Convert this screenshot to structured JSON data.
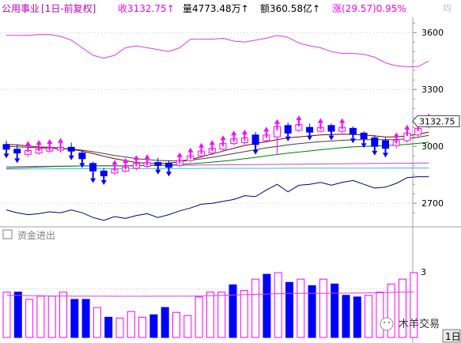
{
  "header": {
    "sector": "公用事业",
    "period": "[1日-前复权]",
    "close": "收3132.75↑",
    "volume": "量4773.48万↑",
    "amount": "额360.58亿↑",
    "change": "涨(29.57)0.95%",
    "tail": "均"
  },
  "price_axis": {
    "ticks": [
      "3600",
      "3300",
      "3000",
      "2700"
    ],
    "current": "3132.75"
  },
  "subpanel": {
    "title": "资金进出",
    "tick": "3",
    "period_button": "1日"
  },
  "watermark": "木羊交易",
  "colors": {
    "up": "#ff00ff",
    "down": "#0000ff",
    "upper_line": "#e03ce0",
    "lower_line": "#000080",
    "ma_long": "#d040d0",
    "ma_cyan": "#30c0d0",
    "ma_green": "#008000",
    "ma_dark": "#800000",
    "ma_gray": "#404040"
  },
  "chart_data": [
    {
      "type": "candlestick",
      "ylim": [
        2580,
        3680
      ],
      "yticks": [
        2700,
        3000,
        3300,
        3600
      ],
      "candles": [
        {
          "o": 3010,
          "c": 2985,
          "h": 3030,
          "l": 2970
        },
        {
          "o": 2985,
          "c": 2965,
          "h": 3010,
          "l": 2945
        },
        {
          "o": 2958,
          "c": 2978,
          "h": 2995,
          "l": 2945
        },
        {
          "o": 2965,
          "c": 2985,
          "h": 3000,
          "l": 2955
        },
        {
          "o": 2975,
          "c": 2992,
          "h": 3005,
          "l": 2965
        },
        {
          "o": 2980,
          "c": 2995,
          "h": 3010,
          "l": 2968
        },
        {
          "o": 2995,
          "c": 2975,
          "h": 3020,
          "l": 2960
        },
        {
          "o": 2965,
          "c": 2935,
          "h": 2980,
          "l": 2920
        },
        {
          "o": 2910,
          "c": 2870,
          "h": 2920,
          "l": 2840
        },
        {
          "o": 2870,
          "c": 2845,
          "h": 2885,
          "l": 2830
        },
        {
          "o": 2860,
          "c": 2880,
          "h": 2895,
          "l": 2850
        },
        {
          "o": 2870,
          "c": 2890,
          "h": 2905,
          "l": 2862
        },
        {
          "o": 2885,
          "c": 2910,
          "h": 2920,
          "l": 2875
        },
        {
          "o": 2895,
          "c": 2915,
          "h": 2925,
          "l": 2885
        },
        {
          "o": 2915,
          "c": 2900,
          "h": 2940,
          "l": 2885
        },
        {
          "o": 2910,
          "c": 2890,
          "h": 2925,
          "l": 2875
        },
        {
          "o": 2900,
          "c": 2925,
          "h": 2935,
          "l": 2890
        },
        {
          "o": 2925,
          "c": 2950,
          "h": 2960,
          "l": 2915
        },
        {
          "o": 2950,
          "c": 2975,
          "h": 2985,
          "l": 2940
        },
        {
          "o": 2965,
          "c": 2990,
          "h": 3000,
          "l": 2955
        },
        {
          "o": 2985,
          "c": 3015,
          "h": 3025,
          "l": 2975
        },
        {
          "o": 3015,
          "c": 3040,
          "h": 3050,
          "l": 3005
        },
        {
          "o": 3020,
          "c": 3045,
          "h": 3055,
          "l": 3010
        },
        {
          "o": 3060,
          "c": 3010,
          "h": 3075,
          "l": 2990
        },
        {
          "o": 3030,
          "c": 3060,
          "h": 3070,
          "l": 3020
        },
        {
          "o": 3050,
          "c": 3105,
          "h": 3110,
          "l": 2960
        },
        {
          "o": 3110,
          "c": 3070,
          "h": 3125,
          "l": 3060
        },
        {
          "o": 3085,
          "c": 3115,
          "h": 3130,
          "l": 3075
        },
        {
          "o": 3100,
          "c": 3075,
          "h": 3120,
          "l": 3065
        },
        {
          "o": 3080,
          "c": 3100,
          "h": 3115,
          "l": 3075
        },
        {
          "o": 3110,
          "c": 3080,
          "h": 3120,
          "l": 3065
        },
        {
          "o": 3080,
          "c": 3100,
          "h": 3115,
          "l": 3070
        },
        {
          "o": 3095,
          "c": 3065,
          "h": 3105,
          "l": 3050
        },
        {
          "o": 3070,
          "c": 3040,
          "h": 3080,
          "l": 3025
        },
        {
          "o": 3045,
          "c": 3000,
          "h": 3060,
          "l": 2985
        },
        {
          "o": 3030,
          "c": 2990,
          "h": 3045,
          "l": 2975
        },
        {
          "o": 3005,
          "c": 3030,
          "h": 3040,
          "l": 2990
        },
        {
          "o": 3030,
          "c": 3070,
          "h": 3080,
          "l": 3020
        },
        {
          "o": 3060,
          "c": 3095,
          "h": 3105,
          "l": 3050
        },
        {
          "o": 3103,
          "c": 3133,
          "h": 3140,
          "l": 3095
        }
      ],
      "ma_dark": [
        3010,
        3008,
        3002,
        2997,
        2995,
        2990,
        2985,
        2975,
        2962,
        2948,
        2935,
        2925,
        2915,
        2910,
        2910,
        2912,
        2918,
        2930,
        2945,
        2960,
        2975,
        2990,
        3005,
        3015,
        3025,
        3035,
        3045,
        3050,
        3055,
        3060,
        3062,
        3064,
        3063,
        3060,
        3055,
        3050,
        3050,
        3055,
        3065,
        3075
      ],
      "ma_gray": [
        3000,
        2998,
        2995,
        2992,
        2990,
        2988,
        2985,
        2980,
        2972,
        2962,
        2952,
        2944,
        2936,
        2930,
        2926,
        2924,
        2925,
        2928,
        2934,
        2942,
        2952,
        2962,
        2972,
        2982,
        2992,
        3000,
        3008,
        3014,
        3020,
        3025,
        3028,
        3032,
        3034,
        3035,
        3035,
        3035,
        3036,
        3040,
        3048,
        3058
      ],
      "ma_green": [
        2885,
        2887,
        2889,
        2891,
        2893,
        2895,
        2896,
        2897,
        2897,
        2897,
        2897,
        2897,
        2898,
        2899,
        2900,
        2902,
        2905,
        2908,
        2912,
        2917,
        2922,
        2928,
        2935,
        2942,
        2950,
        2957,
        2964,
        2970,
        2976,
        2982,
        2988,
        2993,
        2997,
        3000,
        3002,
        3004,
        3007,
        3011,
        3016,
        3022
      ],
      "ma_long": [
        2893,
        2894,
        2894,
        2895,
        2895,
        2896,
        2896,
        2897,
        2897,
        2898,
        2898,
        2898,
        2899,
        2899,
        2900,
        2900,
        2901,
        2901,
        2902,
        2902,
        2903,
        2903,
        2904,
        2904,
        2905,
        2905,
        2906,
        2906,
        2907,
        2907,
        2908,
        2908,
        2909,
        2909,
        2910,
        2910,
        2911,
        2911,
        2912,
        2912
      ],
      "ma_cyan": [
        2880,
        2880,
        2881,
        2881,
        2881,
        2882,
        2882,
        2882,
        2882,
        2882,
        2882,
        2883,
        2883,
        2883,
        2883,
        2883,
        2883,
        2883,
        2884,
        2884,
        2884,
        2884,
        2884,
        2884,
        2884,
        2884,
        2885,
        2885,
        2885,
        2885,
        2885,
        2885,
        2885,
        2885,
        2885,
        2886,
        2886,
        2886,
        2886,
        2886
      ],
      "upper_line": [
        3585,
        3585,
        3585,
        3590,
        3590,
        3580,
        3560,
        3520,
        3480,
        3465,
        3480,
        3520,
        3530,
        3520,
        3510,
        3500,
        3520,
        3565,
        3565,
        3565,
        3570,
        3555,
        3550,
        3560,
        3570,
        3585,
        3575,
        3545,
        3530,
        3520,
        3500,
        3490,
        3490,
        3485,
        3470,
        3440,
        3425,
        3420,
        3420,
        3450
      ],
      "lower_line": [
        2665,
        2650,
        2640,
        2645,
        2655,
        2650,
        2665,
        2650,
        2625,
        2610,
        2630,
        2620,
        2635,
        2645,
        2625,
        2640,
        2660,
        2675,
        2695,
        2700,
        2710,
        2720,
        2740,
        2735,
        2770,
        2800,
        2760,
        2795,
        2800,
        2810,
        2795,
        2810,
        2820,
        2800,
        2780,
        2785,
        2805,
        2835,
        2840,
        2840
      ]
    },
    {
      "type": "bar",
      "title": "资金进出",
      "ylim": [
        0,
        6
      ],
      "yticks": [
        3
      ],
      "values": [
        2.8,
        2.8,
        2.35,
        2.55,
        2.55,
        2.8,
        2.35,
        2.35,
        1.85,
        1.25,
        1.2,
        1.6,
        1.25,
        1.4,
        1.85,
        1.55,
        1.35,
        2.5,
        2.8,
        2.8,
        3.25,
        2.9,
        3.6,
        3.9,
        4.0,
        3.4,
        3.6,
        3.2,
        3.6,
        3.3,
        2.6,
        2.5,
        2.6,
        2.8,
        3.3,
        3.6,
        4.0
      ],
      "up": [
        true,
        false,
        true,
        true,
        true,
        true,
        false,
        false,
        true,
        false,
        true,
        true,
        true,
        false,
        false,
        true,
        true,
        true,
        true,
        true,
        false,
        true,
        true,
        false,
        true,
        false,
        true,
        false,
        true,
        false,
        false,
        false,
        true,
        true,
        true,
        true,
        true
      ],
      "signal": [
        2.6,
        2.6,
        2.58,
        2.57,
        2.56,
        2.56,
        2.55,
        2.55,
        2.55,
        2.55,
        2.54,
        2.54,
        2.54,
        2.55,
        2.55,
        2.55,
        2.55,
        2.56,
        2.58,
        2.6,
        2.62,
        2.64,
        2.66,
        2.68,
        2.7,
        2.72,
        2.72,
        2.72,
        2.72,
        2.73,
        2.73,
        2.74,
        2.75,
        2.76,
        2.78,
        2.8,
        2.82
      ]
    }
  ]
}
